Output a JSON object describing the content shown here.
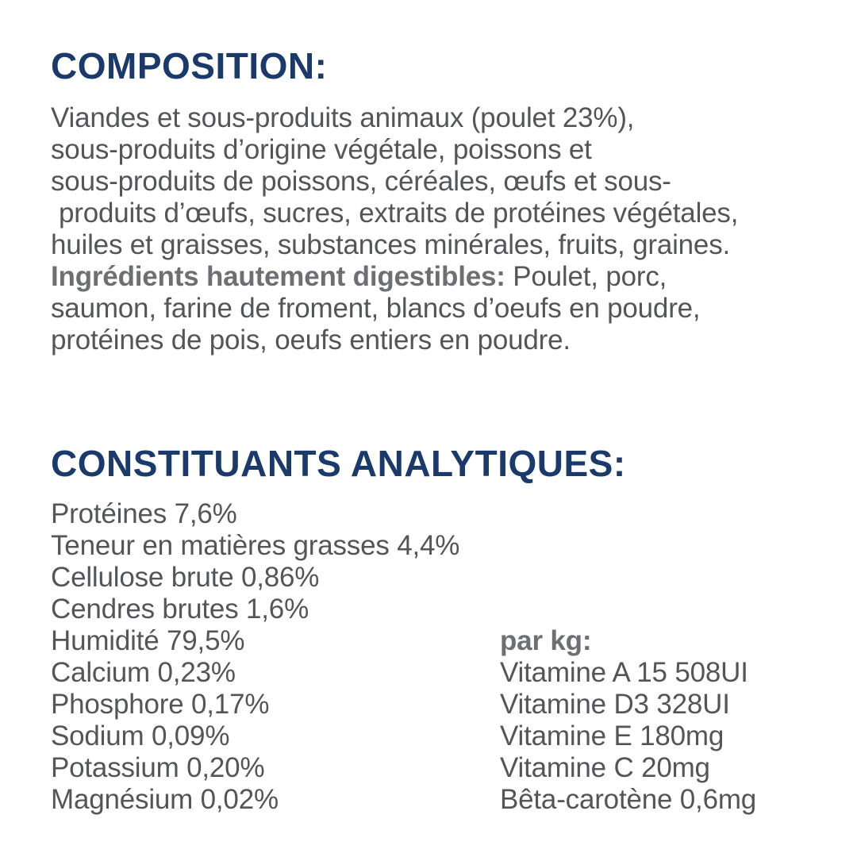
{
  "colors": {
    "heading_navy": "#1a3a6b",
    "body_gray": "#545559",
    "bold_gray": "#6e6f73",
    "background": "#ffffff"
  },
  "composition": {
    "heading": "COMPOSITION:",
    "para_lines": [
      "Viandes et sous-produits animaux (poulet 23%),",
      "sous-produits d’origine végétale, poissons et",
      "sous-produits de poissons, céréales, œufs et sous-",
      "produits d’œufs, sucres, extraits de protéines végétales,",
      "huiles et graisses, substances minérales, fruits, graines."
    ],
    "digestible_label": "Ingrédients hautement digestibles:",
    "digestible_rest": " Poulet, porc,",
    "digestible_lines": [
      "saumon, farine de froment, blancs d’oeufs en poudre,",
      "protéines de pois, oeufs entiers en poudre."
    ]
  },
  "analytical": {
    "heading": "CONSTITUANTS ANALYTIQUES:",
    "items": [
      "Protéines 7,6%",
      "Teneur en matières grasses 4,4%",
      "Cellulose brute 0,86%",
      "Cendres brutes 1,6%",
      "Humidité 79,5%",
      "Calcium 0,23%",
      "Phosphore 0,17%",
      "Sodium 0,09%",
      "Potassium 0,20%",
      "Magnésium 0,02%"
    ],
    "per_kg": {
      "label": "par kg:",
      "items": [
        "Vitamine A 15 508UI",
        "Vitamine D3 328UI",
        "Vitamine E 180mg",
        "Vitamine C 20mg",
        "Bêta-carotène 0,6mg"
      ]
    }
  }
}
